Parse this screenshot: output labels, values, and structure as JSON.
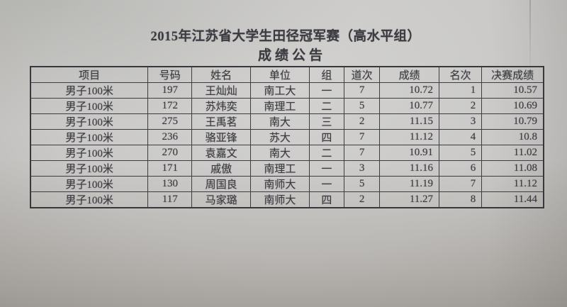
{
  "page": {
    "title": "2015年江苏省大学生田径冠军赛（高水平组）",
    "subtitle": "成绩公告"
  },
  "table": {
    "columns": [
      "项目",
      "号码",
      "姓名",
      "单位",
      "组",
      "道次",
      "成绩",
      "名次",
      "决赛成绩"
    ],
    "rows": [
      [
        "男子100米",
        "197",
        "王灿灿",
        "南工大",
        "一",
        "7",
        "10.72",
        "1",
        "10.57"
      ],
      [
        "男子100米",
        "172",
        "苏炜奕",
        "南理工",
        "二",
        "5",
        "10.77",
        "2",
        "10.69"
      ],
      [
        "男子100米",
        "275",
        "王禹茗",
        "南大",
        "三",
        "2",
        "11.15",
        "3",
        "10.79"
      ],
      [
        "男子100米",
        "236",
        "骆亚锋",
        "苏大",
        "四",
        "7",
        "11.12",
        "4",
        "10.8"
      ],
      [
        "男子100米",
        "270",
        "袁嘉文",
        "南大",
        "二",
        "7",
        "10.91",
        "5",
        "11.02"
      ],
      [
        "男子100米",
        "171",
        "戚傲",
        "南理工",
        "一",
        "3",
        "11.16",
        "6",
        "11.08"
      ],
      [
        "男子100米",
        "130",
        "周国良",
        "南师大",
        "一",
        "5",
        "11.19",
        "7",
        "11.12"
      ],
      [
        "男子100米",
        "117",
        "马家璐",
        "南师大",
        "四",
        "2",
        "11.27",
        "8",
        "11.44"
      ]
    ]
  }
}
